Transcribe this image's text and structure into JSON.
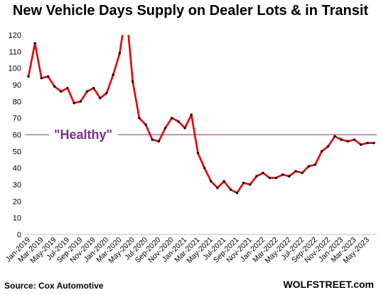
{
  "chart_data": {
    "type": "line",
    "title": "New Vehicle Days Supply on Dealer Lots & in Transit",
    "source": "Source: Cox Automotive",
    "credit": "WOLFSTREET.com",
    "ylim": [
      0,
      120
    ],
    "y_ticks": [
      0,
      10,
      20,
      30,
      40,
      50,
      60,
      70,
      80,
      90,
      100,
      110,
      120
    ],
    "grid": false,
    "x_tick_labels": [
      "Jan-2019",
      "Mar-2019",
      "May-2019",
      "Jul-2019",
      "Sep-2019",
      "Nov-2019",
      "Jan-2020",
      "Mar-2020",
      "May-2020",
      "Jul-2020",
      "Sep-2020",
      "Nov-2020",
      "Jan-2021",
      "Mar-2021",
      "May-2021",
      "Jul-2021",
      "Sep-2021",
      "Nov-2021",
      "Jan-2022",
      "Mar-2022",
      "May-2022",
      "Jul-2022",
      "Sep-2022",
      "Nov-2022",
      "Jan-2023",
      "Mar-2023",
      "May-2023"
    ],
    "reference_line": {
      "value": 60,
      "label": "\"Healthy\"",
      "color": "#7b2d8e"
    },
    "line_color": "#e60000",
    "marker_color": "#000000",
    "series": [
      {
        "x": [
          "Jan-2019",
          "Feb-2019",
          "Mar-2019",
          "Apr-2019",
          "May-2019",
          "Jun-2019",
          "Jul-2019",
          "Aug-2019",
          "Sep-2019",
          "Oct-2019",
          "Nov-2019",
          "Dec-2019",
          "Jan-2020",
          "Feb-2020",
          "Mar-2020",
          "Apr-2020",
          "May-2020",
          "Jun-2020",
          "Jul-2020",
          "Aug-2020",
          "Sep-2020",
          "Oct-2020",
          "Nov-2020",
          "Dec-2020",
          "Jan-2021",
          "Feb-2021",
          "Mar-2021",
          "Apr-2021",
          "May-2021",
          "Jun-2021",
          "Jul-2021",
          "Aug-2021",
          "Sep-2021",
          "Oct-2021",
          "Nov-2021",
          "Dec-2021",
          "Jan-2022",
          "Feb-2022",
          "Mar-2022",
          "Apr-2022",
          "May-2022",
          "Jun-2022",
          "Jul-2022",
          "Aug-2022",
          "Sep-2022",
          "Oct-2022",
          "Nov-2022",
          "Dec-2022",
          "Jan-2023",
          "Feb-2023",
          "Mar-2023",
          "Apr-2023",
          "May-2023",
          "Jun-2023"
        ],
        "values": [
          95,
          115,
          94,
          95,
          89,
          86,
          88,
          79,
          80,
          86,
          88,
          82,
          85,
          96,
          109,
          135,
          92,
          70,
          66,
          57,
          56,
          64,
          70,
          68,
          64,
          72,
          49,
          40,
          32,
          28,
          32,
          27,
          25,
          31,
          30,
          35,
          37,
          34,
          34,
          36,
          35,
          38,
          37,
          41,
          42,
          50,
          53,
          59,
          57,
          56,
          57,
          54,
          55,
          55
        ]
      }
    ]
  }
}
